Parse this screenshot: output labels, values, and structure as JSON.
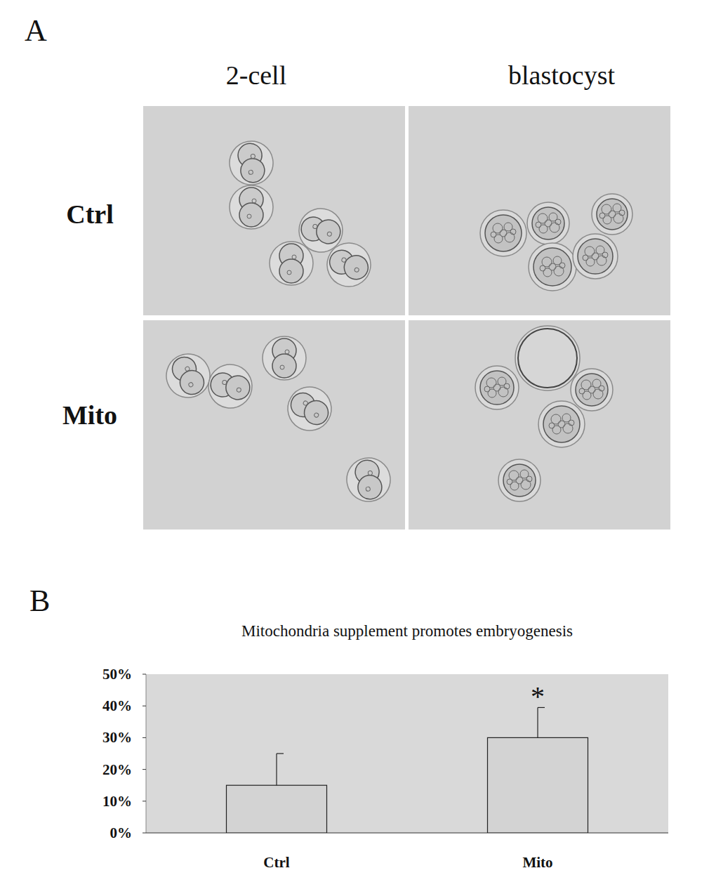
{
  "panel_a": {
    "label": "A",
    "columns": [
      "2-cell",
      "blastocyst"
    ],
    "rows": [
      "Ctrl",
      "Mito"
    ]
  },
  "panel_b": {
    "label": "B"
  },
  "chart_data": {
    "type": "bar",
    "title": "Mitochondria supplement promotes embryogenesis",
    "categories": [
      "Ctrl",
      "Mito"
    ],
    "values": [
      15,
      30
    ],
    "errors": [
      10,
      9.5
    ],
    "color": "#d3d3d3",
    "ylim": [
      0,
      50
    ],
    "yticks": [
      {
        "value": 0,
        "label": "0%"
      },
      {
        "value": 10,
        "label": "10%"
      },
      {
        "value": 20,
        "label": "20%"
      },
      {
        "value": 30,
        "label": "30%"
      },
      {
        "value": 40,
        "label": "40%"
      },
      {
        "value": 50,
        "label": "50%"
      }
    ],
    "grid": false,
    "annotations": [
      {
        "text": "*",
        "x": "Mito"
      }
    ]
  }
}
